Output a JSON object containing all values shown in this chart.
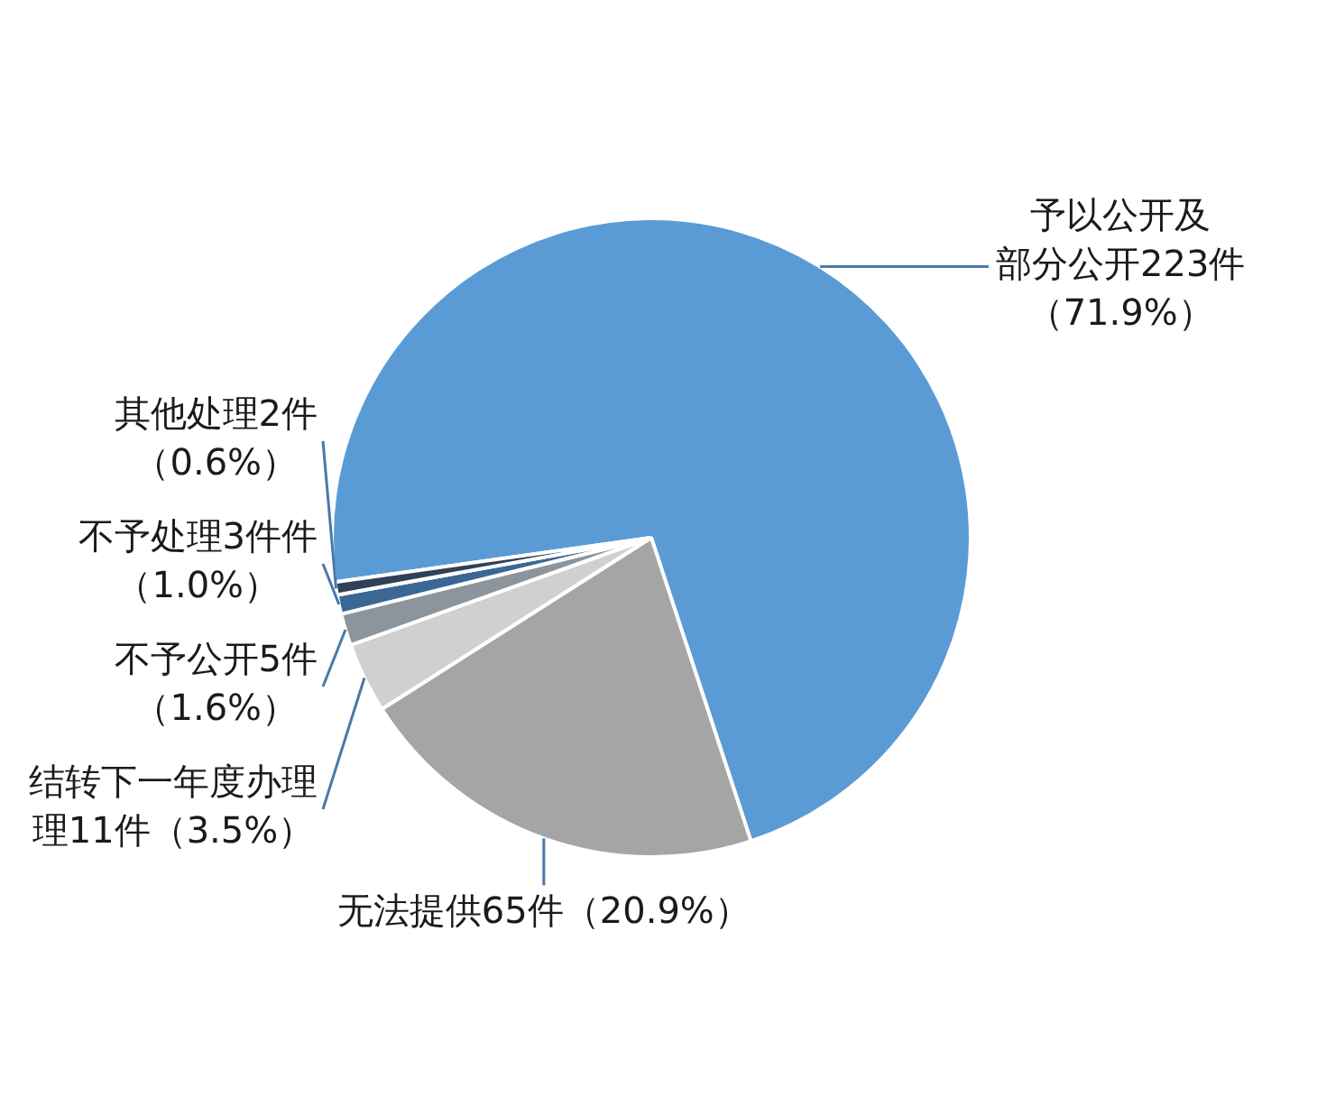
{
  "chart_data": {
    "type": "pie",
    "categories": [
      "予以公开及部分公开223件（71.9%）",
      "无法提供65件（20.9%）",
      "结转下一年度办理理11件（3.5%）",
      "不予公开5件（1.6%）",
      "不予处理3件件（1.0%）",
      "其他处理2件（0.6%）"
    ],
    "values": [
      223,
      65,
      11,
      5,
      3,
      2
    ],
    "colors": [
      "#5b9bd5",
      "#a5a5a5",
      "#d0d0d0",
      "#8c949c",
      "#3a6794",
      "#2f4057"
    ]
  }
}
